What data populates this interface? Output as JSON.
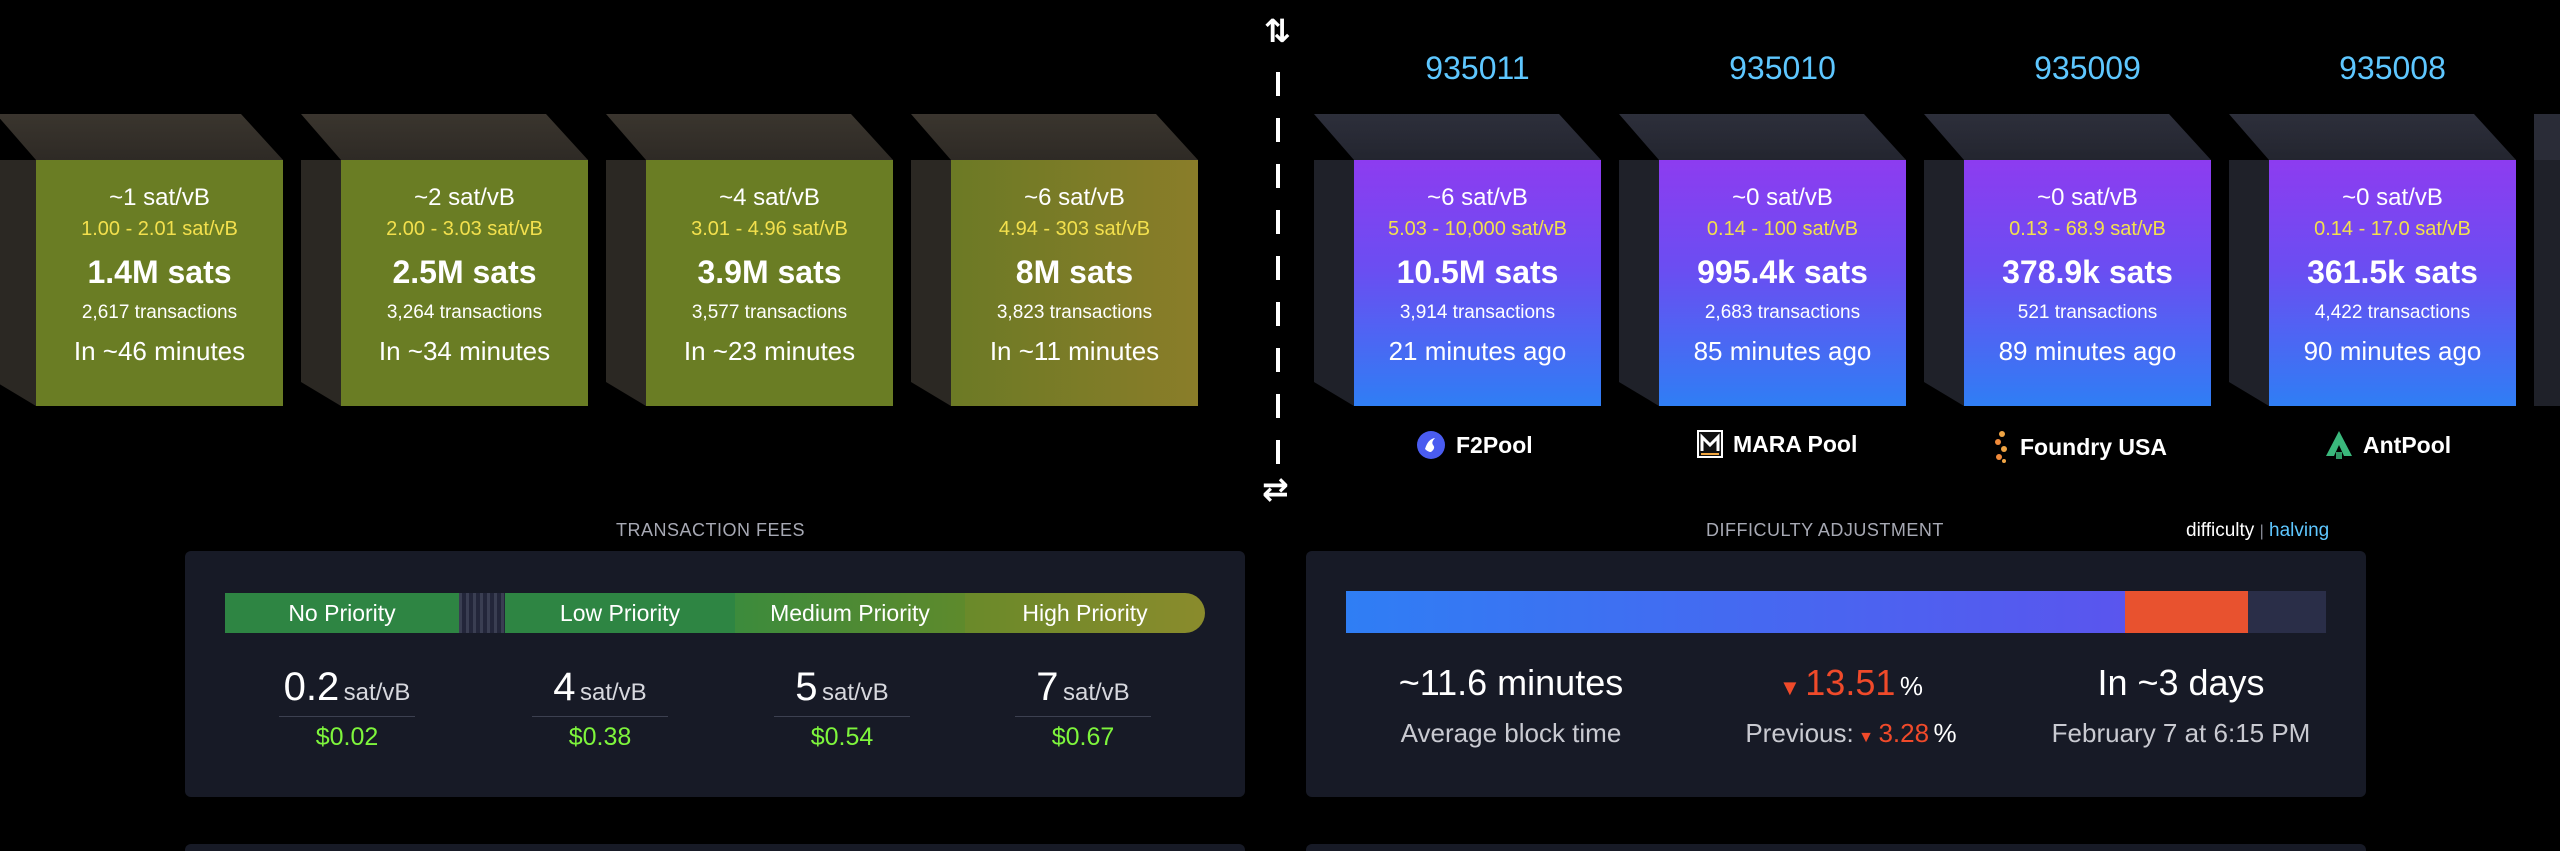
{
  "divider": {
    "top_icon": "⇅",
    "bottom_icon": "⇄"
  },
  "mempool_blocks": [
    {
      "fee": "~1 sat/vB",
      "range": "1.00 - 2.01 sat/vB",
      "sats": "1.4M sats",
      "txs": "2,617 transactions",
      "eta": "In ~46 minutes"
    },
    {
      "fee": "~2 sat/vB",
      "range": "2.00 - 3.03 sat/vB",
      "sats": "2.5M sats",
      "txs": "3,264 transactions",
      "eta": "In ~34 minutes"
    },
    {
      "fee": "~4 sat/vB",
      "range": "3.01 - 4.96 sat/vB",
      "sats": "3.9M sats",
      "txs": "3,577 transactions",
      "eta": "In ~23 minutes"
    },
    {
      "fee": "~6 sat/vB",
      "range": "4.94 - 303 sat/vB",
      "sats": "8M sats",
      "txs": "3,823 transactions",
      "eta": "In ~11 minutes"
    }
  ],
  "mined_blocks": [
    {
      "height": "935011",
      "fee": "~6 sat/vB",
      "range": "5.03 - 10,000 sat/vB",
      "sats": "10.5M sats",
      "txs": "3,914 transactions",
      "time": "21 minutes ago",
      "pool": "F2Pool",
      "pool_icon": "f2pool-icon"
    },
    {
      "height": "935010",
      "fee": "~0 sat/vB",
      "range": "0.14 - 100 sat/vB",
      "sats": "995.4k sats",
      "txs": "2,683 transactions",
      "time": "85 minutes ago",
      "pool": "MARA Pool",
      "pool_icon": "mara-icon"
    },
    {
      "height": "935009",
      "fee": "~0 sat/vB",
      "range": "0.13 - 68.9 sat/vB",
      "sats": "378.9k sats",
      "txs": "521 transactions",
      "time": "89 minutes ago",
      "pool": "Foundry USA",
      "pool_icon": "foundry-icon"
    },
    {
      "height": "935008",
      "fee": "~0 sat/vB",
      "range": "0.14 - 17.0 sat/vB",
      "sats": "361.5k sats",
      "txs": "4,422 transactions",
      "time": "90 minutes ago",
      "pool": "AntPool",
      "pool_icon": "antpool-icon"
    }
  ],
  "fees": {
    "title": "TRANSACTION FEES",
    "priorities": [
      "No Priority",
      "Low Priority",
      "Medium Priority",
      "High Priority"
    ],
    "items": [
      {
        "value": "0.2",
        "unit": "sat/vB",
        "usd": "$0.02"
      },
      {
        "value": "4",
        "unit": "sat/vB",
        "usd": "$0.38"
      },
      {
        "value": "5",
        "unit": "sat/vB",
        "usd": "$0.54"
      },
      {
        "value": "7",
        "unit": "sat/vB",
        "usd": "$0.67"
      }
    ]
  },
  "difficulty": {
    "title": "DIFFICULTY ADJUSTMENT",
    "toggle_difficulty": "difficulty",
    "toggle_sep": "|",
    "toggle_halving": "halving",
    "progress_done": 0.795,
    "progress_estimate": 0.125,
    "avg_value": "~11.6 minutes",
    "avg_label": "Average block time",
    "change_value": "13.51",
    "change_unit": "%",
    "previous_label": "Previous:",
    "previous_value": "3.28",
    "previous_unit": "%",
    "eta_value": "In ~3 days",
    "eta_date": "February 7 at 6:15 PM"
  },
  "colors": {
    "accent_blue": "#5ec7ff",
    "fee_yellow": "#f3e04d",
    "usd_green": "#7ef53c",
    "down_red": "#f04a2a"
  }
}
